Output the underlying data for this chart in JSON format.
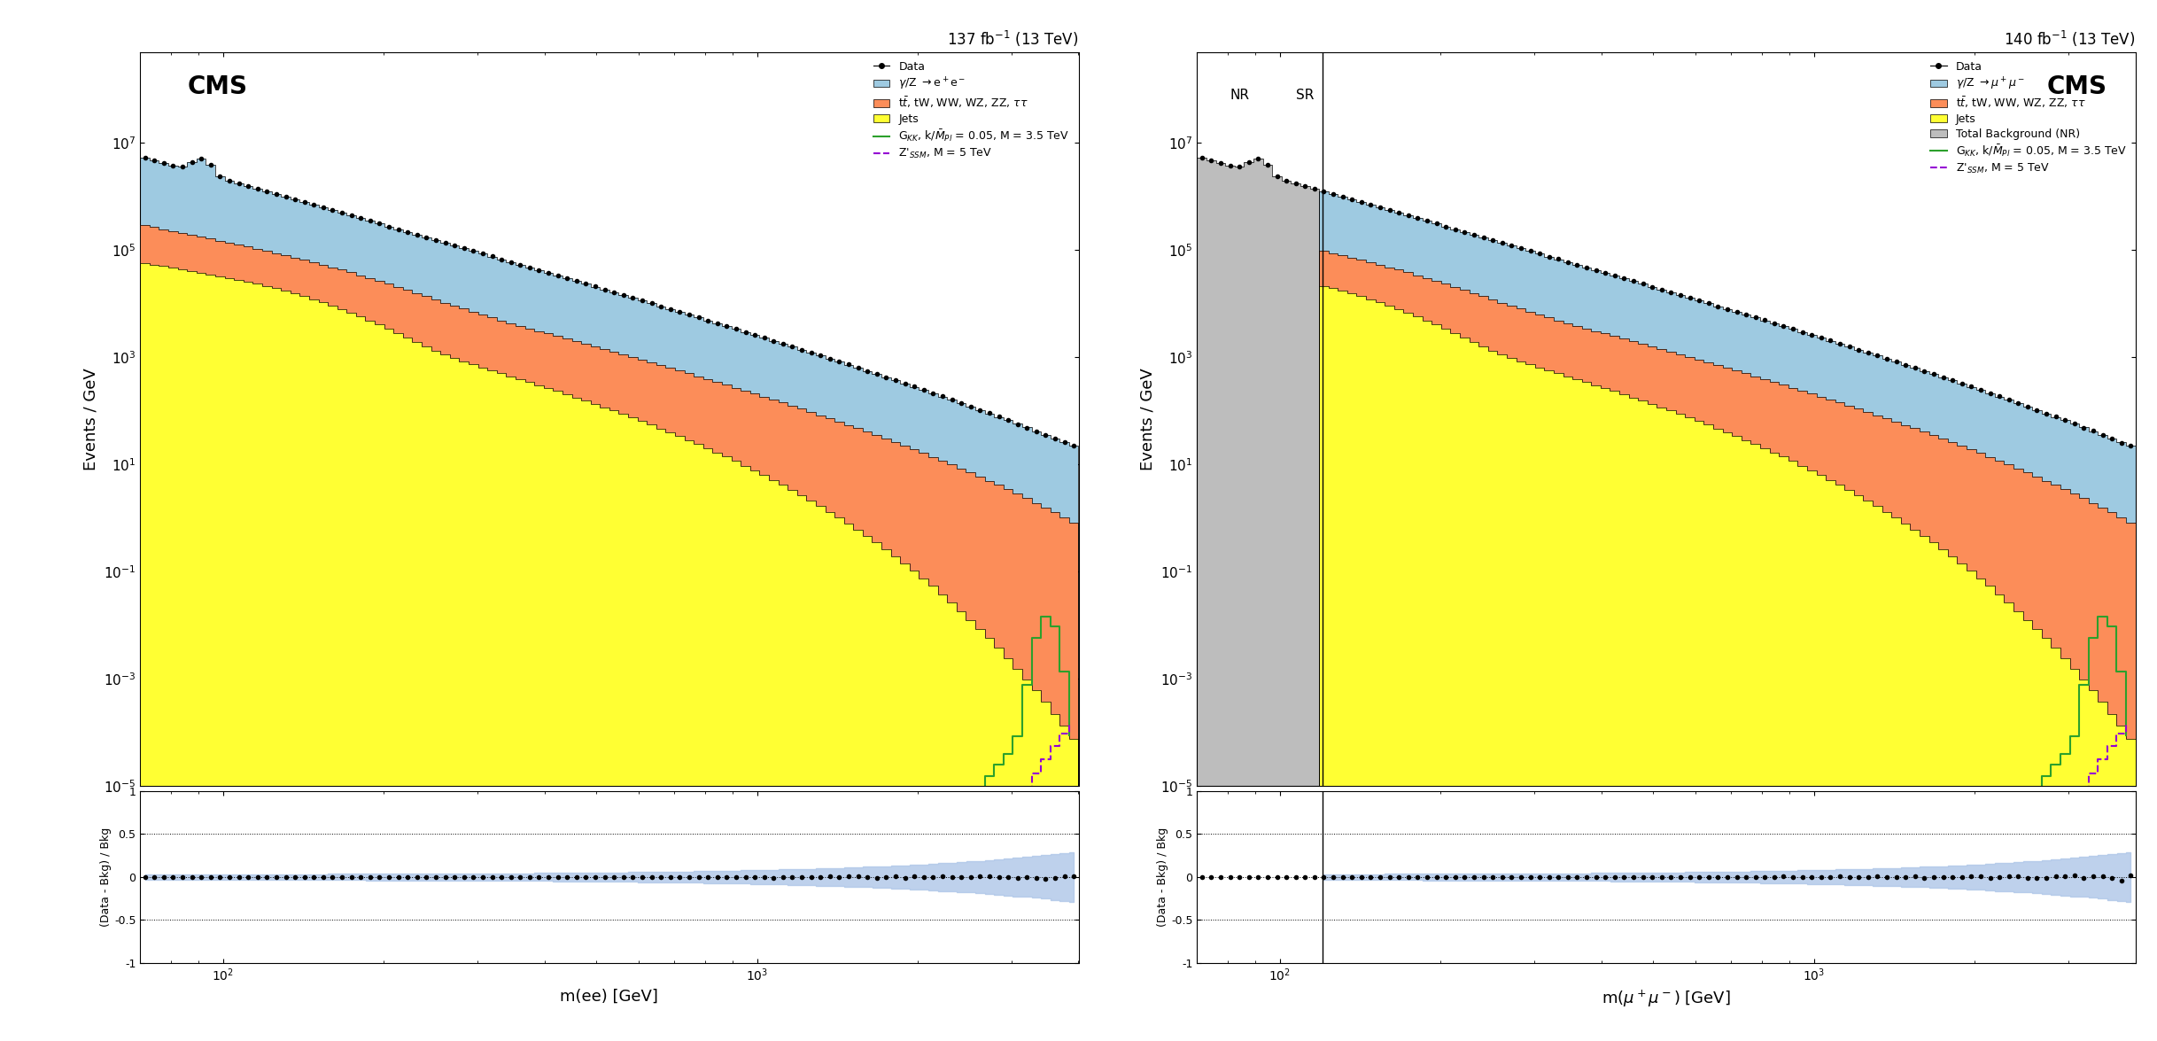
{
  "left_title": "137 fb$^{-1}$ (13 TeV)",
  "right_title": "140 fb$^{-1}$ (13 TeV)",
  "left_xlabel": "m(ee) [GeV]",
  "right_xlabel": "m($\\mu^+\\mu^-$) [GeV]",
  "ylabel": "Events / GeV",
  "ratio_ylabel": "(Data - Bkg) / Bkg",
  "cms_label": "CMS",
  "xmin": 70,
  "xmax": 4000,
  "ymin": 1e-05,
  "ymax": 500000000.0,
  "ratio_ymin": -1,
  "ratio_ymax": 1,
  "ratio_dotted": [
    -0.5,
    0,
    0.5
  ],
  "color_dy": "#9ecae1",
  "color_tt": "#fc8d59",
  "color_jets": "#ffff33",
  "color_gray": "#bdbdbd",
  "color_gkk": "#2ca02c",
  "color_zprime": "#9400d3",
  "color_ratio_band": "#aec6e8",
  "left_legend_dy": "$\\gamma$/Z $\\rightarrow$e$^+$e$^-$",
  "left_legend_tt": "t$\\bar{t}$, tW, WW, WZ, ZZ, $\\tau\\tau$",
  "left_legend_jets": "Jets",
  "right_legend_dy": "$\\gamma$/Z $\\rightarrow\\mu^+\\mu^-$",
  "right_legend_tt": "t$\\bar{t}$, tW, WW, WZ, ZZ, $\\tau\\tau$",
  "right_legend_jets": "Jets",
  "right_legend_gray": "Total Background (NR)",
  "legend_data": "Data",
  "legend_gkk": "G$_{KK}$, k/$\\bar{M}_{Pl}$ = 0.05, M = 3.5 TeV",
  "legend_zprime": "Z'$_{SSM}$, M = 5 TeV",
  "nr_label": "NR",
  "sr_label": "SR",
  "nr_boundary": 120
}
